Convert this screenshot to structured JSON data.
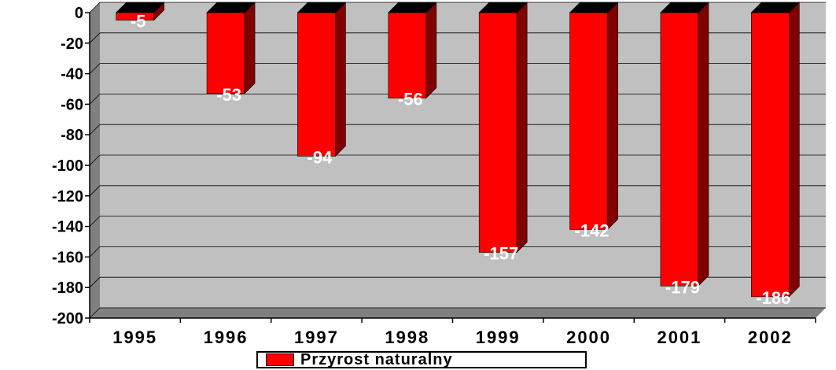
{
  "chart_data": {
    "type": "bar",
    "categories": [
      "1995",
      "1996",
      "1997",
      "1998",
      "1999",
      "2000",
      "2001",
      "2002"
    ],
    "series": [
      {
        "name": "Przyrost naturalny",
        "values": [
          -5,
          -53,
          -94,
          -56,
          -157,
          -142,
          -179,
          -186
        ]
      }
    ],
    "data_labels": [
      "-5",
      "-53",
      "-94",
      "-56",
      "-157",
      "-142",
      "-179",
      "-186"
    ],
    "y_ticks": [
      "0",
      "-20",
      "-40",
      "-60",
      "-80",
      "-100",
      "-120",
      "-140",
      "-160",
      "-180",
      "-200"
    ],
    "ylim": [
      -200,
      0
    ],
    "grid": true,
    "legend_position": "bottom",
    "three_d": true
  },
  "colors": {
    "bar_front": "#ff0000",
    "bar_side": "#800000",
    "bar_top": "#cc0000",
    "plot_wall": "#c0c0c0",
    "plot_side": "#808080",
    "gridline": "#000000"
  }
}
